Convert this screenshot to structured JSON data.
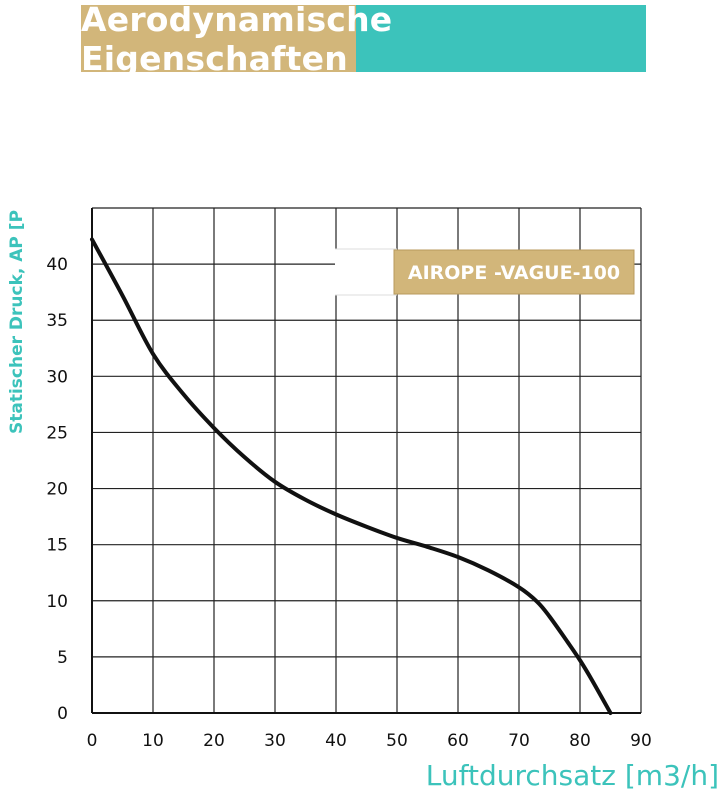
{
  "title": "Aerodynamische Eigenschaften",
  "colors": {
    "banner_left": "#d2b67a",
    "banner_right": "#3cc3bb",
    "axis_label": "#3cc3bb",
    "curve": "#111111",
    "grid": "#222222",
    "legend_box": "#d2b67a",
    "legend_text": "#ffffff"
  },
  "chart_data": {
    "type": "line",
    "title": "Aerodynamische Eigenschaften",
    "xlabel": "Luftdurchsatz [m3/h]",
    "ylabel": "Statischer Druck, AP [P",
    "xlim": [
      0,
      90
    ],
    "ylim": [
      0,
      45
    ],
    "x_ticks": [
      0,
      10,
      20,
      30,
      40,
      50,
      60,
      70,
      80,
      90
    ],
    "y_ticks": [
      0,
      5,
      10,
      15,
      20,
      25,
      30,
      35,
      40
    ],
    "grid": true,
    "legend_position": "top-right",
    "series": [
      {
        "name": "AIROPE -VAGUE-100",
        "x": [
          0,
          5,
          10,
          15,
          20,
          25,
          30,
          35,
          40,
          45,
          50,
          55,
          60,
          65,
          70,
          73,
          75,
          78,
          80,
          82,
          85
        ],
        "y": [
          42.2,
          37.2,
          32.0,
          28.4,
          25.4,
          22.8,
          20.6,
          19.0,
          17.7,
          16.6,
          15.6,
          14.8,
          13.9,
          12.7,
          11.2,
          9.9,
          8.6,
          6.3,
          4.7,
          2.9,
          0
        ]
      }
    ]
  }
}
